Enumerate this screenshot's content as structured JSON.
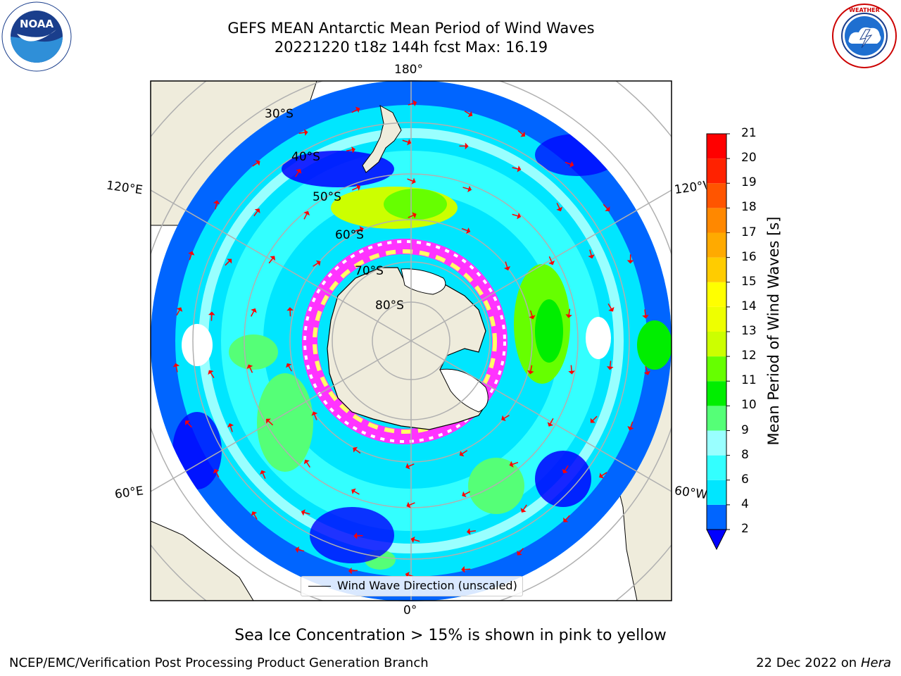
{
  "header": {
    "title_line1": "GEFS MEAN Antarctic Mean Period of Wind Waves",
    "title_line2": "20221220 t18z 144h fcst   Max: 16.19"
  },
  "logos": {
    "left": "noaa-logo",
    "right": "national-weather-service-logo",
    "left_text": "NOAA",
    "left_ring_text": "NATIONAL OCEANIC AND ATMOSPHERIC ADMINISTRATION · U.S. DEPARTMENT OF COMMERCE",
    "right_ring_text": "NATIONAL WEATHER SERVICE"
  },
  "map": {
    "projection": "south-polar-stereographic",
    "longitude_labels": {
      "top": "180°",
      "bottom": "0°",
      "upper_left": "120°E",
      "upper_right": "120°W",
      "lower_left": "60°E",
      "lower_right": "60°W"
    },
    "latitude_labels": [
      "30°S",
      "40°S",
      "50°S",
      "60°S",
      "70°S",
      "80°S"
    ],
    "colors": {
      "land": "#efecdc",
      "sea_ice_low": "#ff33ff",
      "sea_ice_high": "#ffff66",
      "grid": "#b0b0b0",
      "arrows": "#ff0000"
    }
  },
  "legend": {
    "label": "Wind Wave Direction (unscaled)"
  },
  "colorbar": {
    "label": "Mean Period of Wind Waves [s]",
    "ticks": [
      "2",
      "4",
      "6",
      "8",
      "9",
      "10",
      "11",
      "12",
      "13",
      "14",
      "15",
      "16",
      "17",
      "18",
      "19",
      "20",
      "21"
    ],
    "colors": [
      "#0065ff",
      "#00e6ff",
      "#33ffff",
      "#99ffff",
      "#55ff77",
      "#00ee00",
      "#66ff00",
      "#ccff00",
      "#eeff00",
      "#ffff00",
      "#ffcc00",
      "#ffaa00",
      "#ff8800",
      "#ff5500",
      "#ff2200",
      "#ff0000"
    ],
    "extend_color": "#0000ff"
  },
  "caption": "Sea Ice Concentration > 15% is shown in pink to yellow",
  "footer": {
    "left": "NCEP/EMC/Verification Post Processing Product Generation Branch",
    "right_date": "22 Dec 2022 on",
    "right_host": "Hera"
  }
}
